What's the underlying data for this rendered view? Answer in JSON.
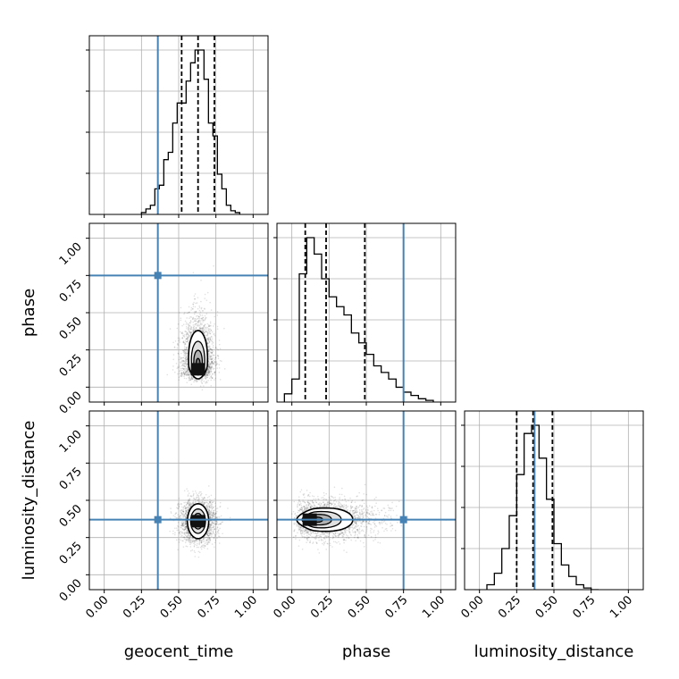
{
  "chart_data": {
    "type": "corner",
    "parameters": [
      "geocent_time",
      "phase",
      "luminosity_distance"
    ],
    "axis_range": [
      -0.1,
      1.1
    ],
    "tick_values": [
      0.0,
      0.25,
      0.5,
      0.75,
      1.0
    ],
    "tick_labels": [
      "0.00",
      "0.25",
      "0.50",
      "0.75",
      "1.00"
    ],
    "grid": true,
    "truth_color": "#4682b4",
    "truths": {
      "geocent_time": 0.36,
      "phase": 0.75,
      "luminosity_distance": 0.37
    },
    "quantiles": {
      "geocent_time": [
        0.52,
        0.63,
        0.74
      ],
      "phase": [
        0.09,
        0.23,
        0.49
      ],
      "luminosity_distance": [
        0.25,
        0.36,
        0.49
      ]
    },
    "histograms": {
      "geocent_time": {
        "bin_edges": [
          0.25,
          0.28,
          0.31,
          0.34,
          0.37,
          0.4,
          0.43,
          0.46,
          0.49,
          0.52,
          0.55,
          0.58,
          0.61,
          0.64,
          0.67,
          0.7,
          0.73,
          0.76,
          0.79,
          0.82,
          0.85,
          0.88,
          0.91
        ],
        "counts": [
          1,
          3,
          5,
          14,
          16,
          30,
          34,
          50,
          61,
          61,
          73,
          83,
          90,
          90,
          74,
          50,
          43,
          22,
          14,
          5,
          2,
          1
        ]
      },
      "phase": {
        "bin_edges": [
          -0.05,
          0.0,
          0.05,
          0.1,
          0.15,
          0.2,
          0.25,
          0.3,
          0.35,
          0.4,
          0.45,
          0.5,
          0.55,
          0.6,
          0.65,
          0.7,
          0.75,
          0.8,
          0.85,
          0.9,
          0.95
        ],
        "counts": [
          5,
          14,
          78,
          100,
          90,
          75,
          64,
          58,
          53,
          42,
          36,
          29,
          22,
          18,
          14,
          9,
          6,
          4,
          2,
          1
        ]
      },
      "luminosity_distance": {
        "bin_edges": [
          0.05,
          0.1,
          0.15,
          0.2,
          0.25,
          0.3,
          0.35,
          0.4,
          0.45,
          0.5,
          0.55,
          0.6,
          0.65,
          0.7,
          0.75,
          0.8
        ],
        "counts": [
          3,
          10,
          25,
          45,
          70,
          95,
          100,
          80,
          55,
          28,
          15,
          8,
          3,
          1,
          0
        ]
      }
    },
    "pairs": [
      {
        "x": "geocent_time",
        "y": "phase",
        "center": [
          0.63,
          0.12
        ],
        "spread": [
          0.1,
          0.24
        ],
        "tail": "up"
      },
      {
        "x": "geocent_time",
        "y": "luminosity_distance",
        "center": [
          0.63,
          0.36
        ],
        "spread": [
          0.11,
          0.13
        ],
        "tail": "none"
      },
      {
        "x": "phase",
        "y": "luminosity_distance",
        "center": [
          0.12,
          0.37
        ],
        "spread": [
          0.26,
          0.12
        ],
        "tail": "right"
      }
    ]
  }
}
